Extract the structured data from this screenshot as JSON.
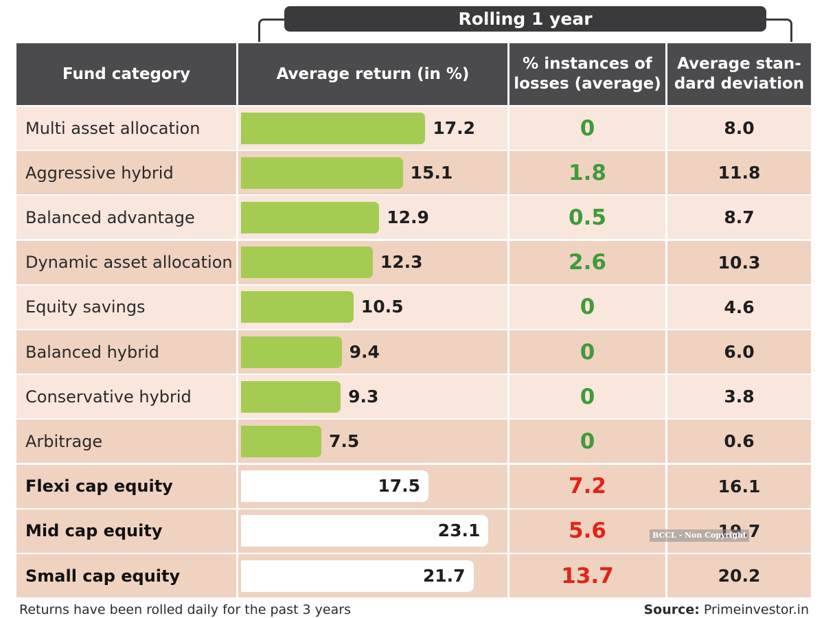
{
  "banner": "Rolling 1 year",
  "headers": {
    "fund_category": "Fund category",
    "average_return": "Average return (in %)",
    "losses": "% instances of\nlosses (average)",
    "stdev": "Average stan-\ndard deviation"
  },
  "colors": {
    "header_bg": "#4b4b4d",
    "row_light": "#f9e6dd",
    "row_dark": "#f0d2c1",
    "bar_green": "#a5cc52",
    "bar_white": "#ffffff",
    "loss_green": "#3f9b3a",
    "loss_red": "#e2231a"
  },
  "chart_data": {
    "type": "table",
    "columns": [
      "Fund category",
      "Average return (in %)",
      "% instances of losses (average)",
      "Average standard deviation"
    ],
    "rows": [
      {
        "category": "Multi asset allocation",
        "avg_return": 17.2,
        "return_label": "17.2",
        "losses": 0,
        "losses_label": "0",
        "stdev": 8.0,
        "stdev_label": "8.0",
        "group": "hybrid"
      },
      {
        "category": "Aggressive hybrid",
        "avg_return": 15.1,
        "return_label": "15.1",
        "losses": 1.8,
        "losses_label": "1.8",
        "stdev": 11.8,
        "stdev_label": "11.8",
        "group": "hybrid"
      },
      {
        "category": "Balanced advantage",
        "avg_return": 12.9,
        "return_label": "12.9",
        "losses": 0.5,
        "losses_label": "0.5",
        "stdev": 8.7,
        "stdev_label": "8.7",
        "group": "hybrid"
      },
      {
        "category": "Dynamic asset allocation",
        "avg_return": 12.3,
        "return_label": "12.3",
        "losses": 2.6,
        "losses_label": "2.6",
        "stdev": 10.3,
        "stdev_label": "10.3",
        "group": "hybrid"
      },
      {
        "category": "Equity savings",
        "avg_return": 10.5,
        "return_label": "10.5",
        "losses": 0,
        "losses_label": "0",
        "stdev": 4.6,
        "stdev_label": "4.6",
        "group": "hybrid"
      },
      {
        "category": "Balanced hybrid",
        "avg_return": 9.4,
        "return_label": "9.4",
        "losses": 0,
        "losses_label": "0",
        "stdev": 6.0,
        "stdev_label": "6.0",
        "group": "hybrid"
      },
      {
        "category": "Conservative hybrid",
        "avg_return": 9.3,
        "return_label": "9.3",
        "losses": 0,
        "losses_label": "0",
        "stdev": 3.8,
        "stdev_label": "3.8",
        "group": "hybrid"
      },
      {
        "category": "Arbitrage",
        "avg_return": 7.5,
        "return_label": "7.5",
        "losses": 0,
        "losses_label": "0",
        "stdev": 0.6,
        "stdev_label": "0.6",
        "group": "hybrid"
      },
      {
        "category": "Flexi cap equity",
        "avg_return": 17.5,
        "return_label": "17.5",
        "losses": 7.2,
        "losses_label": "7.2",
        "stdev": 16.1,
        "stdev_label": "16.1",
        "group": "equity"
      },
      {
        "category": "Mid cap equity",
        "avg_return": 23.1,
        "return_label": "23.1",
        "losses": 5.6,
        "losses_label": "5.6",
        "stdev": 19.7,
        "stdev_label": "19.7",
        "group": "equity"
      },
      {
        "category": "Small cap equity",
        "avg_return": 21.7,
        "return_label": "21.7",
        "losses": 13.7,
        "losses_label": "13.7",
        "stdev": 20.2,
        "stdev_label": "20.2",
        "group": "equity"
      }
    ]
  },
  "footnote": "Returns have been rolled daily for the past 3 years",
  "source": {
    "label": "Source:",
    "value": "Primeinvestor.in"
  },
  "watermark": "BCCL - Non Copyright"
}
